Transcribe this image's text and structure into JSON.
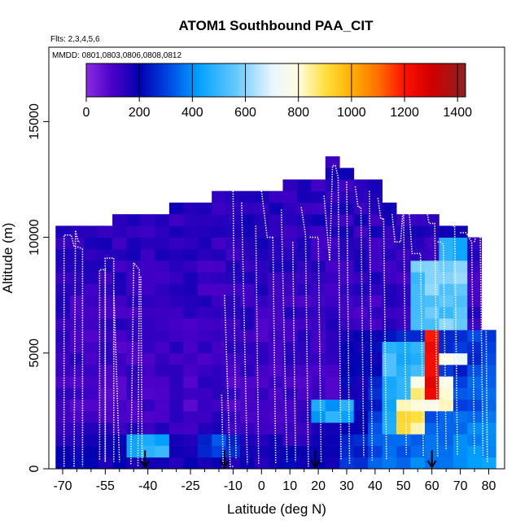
{
  "chart_data": {
    "type": "heatmap",
    "title": "ATOM1 Southbound PAA_CIT",
    "flights_label": "Flts: 2,3,4,5,6",
    "dates_label": "MMDD: 0801,0803,0806,0808,0812",
    "xlabel": "Latitude (deg N)",
    "ylabel": "Altitude (m)",
    "xlim": [
      -70,
      85
    ],
    "ylim": [
      0,
      18000
    ],
    "x_ticks": [
      -70,
      -55,
      -40,
      -25,
      -10,
      0,
      10,
      20,
      30,
      40,
      50,
      60,
      70,
      80
    ],
    "x_tick_labels": [
      "-70",
      "-55",
      "-40",
      "-25",
      "-10",
      "0",
      "10",
      "20",
      "30",
      "40",
      "50",
      "60",
      "70",
      "80"
    ],
    "y_ticks": [
      0,
      5000,
      10000,
      15000
    ],
    "y_tick_labels": [
      "0",
      "5000",
      "10000",
      "15000"
    ],
    "colorbar": {
      "min": 0,
      "max": 1430,
      "ticks": [
        0,
        200,
        400,
        600,
        800,
        1000,
        1200,
        1400
      ],
      "tick_labels": [
        "0",
        "200",
        "400",
        "600",
        "800",
        "1000",
        "1200",
        "1400"
      ],
      "stops": [
        {
          "v": 0,
          "c": "#8a2be2"
        },
        {
          "v": 100,
          "c": "#4b00c8"
        },
        {
          "v": 200,
          "c": "#0000b0"
        },
        {
          "v": 300,
          "c": "#0040e0"
        },
        {
          "v": 420,
          "c": "#00a0ff"
        },
        {
          "v": 560,
          "c": "#60c8ff"
        },
        {
          "v": 700,
          "c": "#e8f6ff"
        },
        {
          "v": 800,
          "c": "#fffde0"
        },
        {
          "v": 900,
          "c": "#ffe040"
        },
        {
          "v": 1000,
          "c": "#ffb000"
        },
        {
          "v": 1100,
          "c": "#ff7000"
        },
        {
          "v": 1200,
          "c": "#ff1000"
        },
        {
          "v": 1300,
          "c": "#d00000"
        },
        {
          "v": 1430,
          "c": "#902020"
        }
      ]
    },
    "grid": {
      "lat_step": 5,
      "alt_step": 500,
      "columns": [
        {
          "lat": -70,
          "top": 10500,
          "base": 150
        },
        {
          "lat": -65,
          "top": 10500,
          "base": 150
        },
        {
          "lat": -60,
          "top": 10500,
          "base": 170
        },
        {
          "lat": -55,
          "top": 10500,
          "base": 180
        },
        {
          "lat": -50,
          "top": 11000,
          "base": 190
        },
        {
          "lat": -45,
          "top": 11000,
          "base": 200
        },
        {
          "lat": -40,
          "top": 11000,
          "base": 210
        },
        {
          "lat": -35,
          "top": 11000,
          "base": 230
        },
        {
          "lat": -30,
          "top": 11500,
          "base": 230
        },
        {
          "lat": -25,
          "top": 11500,
          "base": 230
        },
        {
          "lat": -20,
          "top": 11500,
          "base": 230
        },
        {
          "lat": -15,
          "top": 12000,
          "base": 230
        },
        {
          "lat": -10,
          "top": 12000,
          "base": 200
        },
        {
          "lat": -5,
          "top": 12000,
          "base": 190
        },
        {
          "lat": 0,
          "top": 12000,
          "base": 190
        },
        {
          "lat": 5,
          "top": 12000,
          "base": 200
        },
        {
          "lat": 10,
          "top": 12500,
          "base": 210
        },
        {
          "lat": 15,
          "top": 12500,
          "base": 220
        },
        {
          "lat": 20,
          "top": 12500,
          "base": 250
        },
        {
          "lat": 25,
          "top": 13500,
          "base": 300
        },
        {
          "lat": 30,
          "top": 13000,
          "base": 350
        },
        {
          "lat": 35,
          "top": 12500,
          "base": 400
        },
        {
          "lat": 40,
          "top": 12500,
          "base": 450
        },
        {
          "lat": 45,
          "top": 11500,
          "base": 500
        },
        {
          "lat": 50,
          "top": 11000,
          "base": 550
        },
        {
          "lat": 55,
          "top": 11000,
          "base": 600
        },
        {
          "lat": 60,
          "top": 11000,
          "base": 580
        },
        {
          "lat": 65,
          "top": 10500,
          "base": 560
        },
        {
          "lat": 70,
          "top": 10500,
          "base": 540
        },
        {
          "lat": 75,
          "top": 10000,
          "base": 500
        },
        {
          "lat": 80,
          "top": 6000,
          "base": 450
        }
      ],
      "features": [
        {
          "lat": [
            -45,
            -30
          ],
          "alt": [
            300,
            1500
          ],
          "value": 450
        },
        {
          "lat": [
            -20,
            -5
          ],
          "alt": [
            500,
            1500
          ],
          "value": 300
        },
        {
          "lat": [
            20,
            35
          ],
          "alt": [
            2000,
            3000
          ],
          "value": 430
        },
        {
          "lat": [
            45,
            60
          ],
          "alt": [
            1500,
            5500
          ],
          "value": 480
        },
        {
          "lat": [
            50,
            58
          ],
          "alt": [
            1500,
            3000
          ],
          "value": 880
        },
        {
          "lat": [
            55,
            70
          ],
          "alt": [
            2500,
            4000
          ],
          "value": 820
        },
        {
          "lat": [
            60,
            65
          ],
          "alt": [
            3000,
            6500
          ],
          "value": 1250
        },
        {
          "lat": [
            61,
            63
          ],
          "alt": [
            4000,
            6000
          ],
          "value": 1400
        },
        {
          "lat": [
            65,
            75
          ],
          "alt": [
            4500,
            5000
          ],
          "value": 780
        },
        {
          "lat": [
            55,
            75
          ],
          "alt": [
            6000,
            9000
          ],
          "value": 560
        },
        {
          "lat": [
            65,
            75
          ],
          "alt": [
            9000,
            10000
          ],
          "value": 450
        }
      ]
    },
    "profiles": [
      {
        "x": [
          -69.5,
          -69.5,
          -67,
          -66,
          -65,
          -63
        ],
        "y": [
          100,
          10100,
          10100,
          9600,
          9600,
          9500
        ]
      },
      {
        "x": [
          -66,
          -65.5,
          -64.5,
          -64
        ],
        "y": [
          100,
          10300,
          9800,
          9800
        ]
      },
      {
        "x": [
          -63,
          -63
        ],
        "y": [
          9500,
          100
        ]
      },
      {
        "x": [
          -57,
          -57,
          -55,
          -55
        ],
        "y": [
          400,
          8600,
          8600,
          300
        ]
      },
      {
        "x": [
          -55,
          -55,
          -52,
          -52
        ],
        "y": [
          300,
          9100,
          9100,
          300
        ]
      },
      {
        "x": [
          -46,
          -45,
          -43,
          -43.5
        ],
        "y": [
          200,
          8900,
          8600,
          100
        ]
      },
      {
        "x": [
          -52,
          -50
        ],
        "y": [
          7700,
          300
        ]
      },
      {
        "x": [
          -42.5,
          -42
        ],
        "y": [
          8300,
          200
        ]
      },
      {
        "x": [
          -14,
          -13.5
        ],
        "y": [
          3200,
          100
        ]
      },
      {
        "x": [
          -13,
          -11,
          -10
        ],
        "y": [
          7500,
          100,
          100
        ]
      },
      {
        "x": [
          -10,
          -9
        ],
        "y": [
          12000,
          400
        ]
      },
      {
        "x": [
          -7,
          -5
        ],
        "y": [
          11500,
          200
        ]
      },
      {
        "x": [
          -2,
          -1
        ],
        "y": [
          10500,
          200
        ]
      },
      {
        "x": [
          0,
          2,
          4
        ],
        "y": [
          12000,
          10000,
          10000
        ]
      },
      {
        "x": [
          4,
          5
        ],
        "y": [
          10000,
          200
        ]
      },
      {
        "x": [
          7,
          9
        ],
        "y": [
          11200,
          300
        ]
      },
      {
        "x": [
          11,
          12
        ],
        "y": [
          9800,
          300
        ]
      },
      {
        "x": [
          14,
          15.5,
          16.5
        ],
        "y": [
          11300,
          10100,
          100
        ]
      },
      {
        "x": [
          17,
          18,
          20,
          21
        ],
        "y": [
          10000,
          10000,
          10000,
          300
        ]
      },
      {
        "x": [
          22,
          24
        ],
        "y": [
          11800,
          9000
        ]
      },
      {
        "x": [
          24,
          25,
          26,
          27,
          28
        ],
        "y": [
          9000,
          13100,
          13100,
          12600,
          400
        ]
      },
      {
        "x": [
          30,
          31
        ],
        "y": [
          12400,
          200
        ]
      },
      {
        "x": [
          33,
          34,
          35,
          36
        ],
        "y": [
          12200,
          11300,
          11300,
          500
        ]
      },
      {
        "x": [
          38,
          39
        ],
        "y": [
          12000,
          300
        ]
      },
      {
        "x": [
          41,
          42,
          43
        ],
        "y": [
          11700,
          10800,
          10800
        ]
      },
      {
        "x": [
          43,
          44
        ],
        "y": [
          10800,
          400
        ]
      },
      {
        "x": [
          46,
          47,
          49,
          50,
          51
        ],
        "y": [
          11000,
          9800,
          9800,
          11500,
          600
        ]
      },
      {
        "x": [
          52,
          53,
          56,
          57
        ],
        "y": [
          11100,
          9300,
          9300,
          500
        ]
      },
      {
        "x": [
          58,
          59,
          60,
          61,
          62
        ],
        "y": [
          11300,
          10600,
          10600,
          10600,
          500
        ]
      },
      {
        "x": [
          62,
          63,
          64,
          65
        ],
        "y": [
          9800,
          9800,
          9700,
          800
        ]
      },
      {
        "x": [
          66,
          67,
          68,
          69
        ],
        "y": [
          11400,
          10500,
          10500,
          600
        ]
      },
      {
        "x": [
          70,
          72,
          74,
          75
        ],
        "y": [
          10200,
          10200,
          9800,
          600
        ]
      },
      {
        "x": [
          75,
          76,
          77,
          78
        ],
        "y": [
          9800,
          10400,
          10200,
          500
        ]
      },
      {
        "x": [
          79,
          79.5
        ],
        "y": [
          7200,
          300
        ]
      }
    ],
    "markers": [
      {
        "lat": -41,
        "alt": 800
      },
      {
        "lat": -13,
        "alt": 800
      },
      {
        "lat": 19,
        "alt": 800
      },
      {
        "lat": 60,
        "alt": 800
      }
    ]
  }
}
